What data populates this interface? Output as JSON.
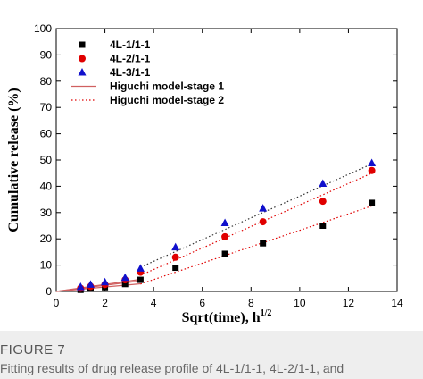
{
  "figure": {
    "label": "FIGURE 7",
    "caption": "Fitting results of drug release profile of 4L-1/1-1, 4L-2/1-1, and"
  },
  "chart_data": {
    "type": "scatter",
    "xlabel": "Sqrt(time), h",
    "xlabel_superscript": "1/2",
    "ylabel": "Cumulative release (%)",
    "xlim": [
      0,
      14
    ],
    "ylim": [
      0,
      100
    ],
    "xticks": [
      0,
      2,
      4,
      6,
      8,
      10,
      12,
      14
    ],
    "yticks": [
      0,
      10,
      20,
      30,
      40,
      50,
      60,
      70,
      80,
      90,
      100
    ],
    "grid": false,
    "legend_position": "top-left",
    "series": [
      {
        "name": "4L-1/1-1",
        "marker": "square",
        "color": "#000000",
        "x": [
          1.0,
          1.41,
          2.0,
          2.83,
          3.46,
          4.9,
          6.93,
          8.49,
          10.95,
          12.96
        ],
        "y": [
          0.6,
          1.0,
          1.6,
          2.8,
          4.4,
          9.0,
          14.3,
          18.3,
          25.0,
          33.7
        ]
      },
      {
        "name": "4L-2/1-1",
        "marker": "circle",
        "color": "#e00000",
        "x": [
          1.0,
          1.41,
          2.0,
          2.83,
          3.46,
          4.9,
          6.93,
          8.49,
          10.95,
          12.96
        ],
        "y": [
          1.2,
          1.9,
          2.6,
          4.4,
          7.3,
          13.0,
          20.8,
          26.5,
          34.3,
          46.0
        ]
      },
      {
        "name": "4L-3/1-1",
        "marker": "triangle",
        "color": "#1010cc",
        "x": [
          1.0,
          1.41,
          2.0,
          2.83,
          3.46,
          4.9,
          6.93,
          8.49,
          10.95,
          12.96
        ],
        "y": [
          1.7,
          2.6,
          3.5,
          5.2,
          8.7,
          16.8,
          26.0,
          31.6,
          41.0,
          48.8
        ]
      }
    ],
    "fits": [
      {
        "name": "Higuchi model-stage 1",
        "style": "solid",
        "color": "#d06060",
        "lines": [
          {
            "x": [
              0,
              3.46
            ],
            "y": [
              0,
              2.9
            ]
          },
          {
            "x": [
              0,
              3.46
            ],
            "y": [
              0,
              4.0
            ]
          },
          {
            "x": [
              0,
              3.46
            ],
            "y": [
              0,
              4.6
            ]
          }
        ]
      },
      {
        "name": "Higuchi model-stage 2",
        "style": "dotted",
        "color": "#e00000",
        "lines": [
          {
            "x": [
              3.46,
              12.96
            ],
            "y": [
              2.8,
              32.5
            ],
            "color": "#e00000"
          },
          {
            "x": [
              3.46,
              12.96
            ],
            "y": [
              6.1,
              45.0
            ],
            "color": "#e00000"
          },
          {
            "x": [
              3.46,
              12.96
            ],
            "y": [
              9.2,
              48.5
            ],
            "color": "#333333"
          }
        ]
      }
    ]
  }
}
